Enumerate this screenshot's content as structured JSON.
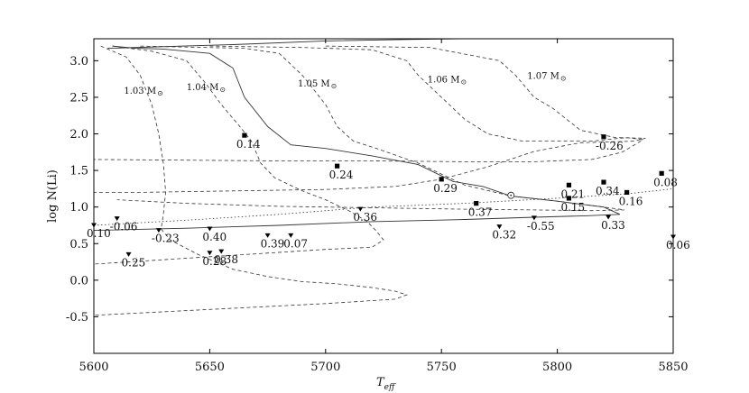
{
  "chart_data": {
    "type": "scatter",
    "xlabel": "T",
    "xlabel_sub": "eff",
    "ylabel": "log N(Li)",
    "xlim": [
      5600,
      5850
    ],
    "ylim": [
      -1.0,
      3.3
    ],
    "xticks": [
      "5600",
      "5650",
      "5700",
      "5750",
      "5800",
      "5850"
    ],
    "yticks": [
      "-0.5",
      "0.0",
      "0.5",
      "1.0",
      "1.5",
      "2.0",
      "2.5",
      "3.0"
    ],
    "tracks": [
      {
        "label": "1.03 M",
        "style": "dashed",
        "points": [
          [
            5603,
            3.2
          ],
          [
            5614,
            3.05
          ],
          [
            5620,
            2.8
          ],
          [
            5625,
            2.4
          ],
          [
            5628,
            2.0
          ],
          [
            5630,
            1.6
          ],
          [
            5631,
            1.2
          ],
          [
            5630,
            0.9
          ],
          [
            5629,
            0.7
          ],
          [
            5633,
            0.55
          ],
          [
            5645,
            0.35
          ],
          [
            5660,
            0.15
          ],
          [
            5675,
            0.05
          ],
          [
            5690,
            -0.02
          ],
          [
            5705,
            -0.05
          ],
          [
            5720,
            -0.1
          ],
          [
            5730,
            -0.15
          ],
          [
            5735,
            -0.2
          ],
          [
            5730,
            -0.26
          ],
          [
            5700,
            -0.32
          ],
          [
            5650,
            -0.4
          ],
          [
            5600,
            -0.48
          ]
        ]
      },
      {
        "label": "1.04 M",
        "style": "dashed",
        "points": [
          [
            5608,
            3.2
          ],
          [
            5625,
            3.13
          ],
          [
            5640,
            3.0
          ],
          [
            5648,
            2.7
          ],
          [
            5655,
            2.4
          ],
          [
            5663,
            2.1
          ],
          [
            5668,
            1.9
          ],
          [
            5672,
            1.6
          ],
          [
            5678,
            1.4
          ],
          [
            5690,
            1.22
          ],
          [
            5700,
            1.1
          ],
          [
            5710,
            0.95
          ],
          [
            5718,
            0.8
          ],
          [
            5722,
            0.67
          ],
          [
            5725,
            0.55
          ],
          [
            5720,
            0.45
          ],
          [
            5700,
            0.42
          ],
          [
            5670,
            0.36
          ],
          [
            5640,
            0.3
          ],
          [
            5600,
            0.22
          ]
        ]
      },
      {
        "label": "1.04 M",
        "style": "solid",
        "points": [
          [
            5608,
            3.2
          ],
          [
            5618,
            3.17
          ],
          [
            5630,
            3.16
          ],
          [
            5650,
            3.1
          ],
          [
            5660,
            2.9
          ],
          [
            5665,
            2.5
          ],
          [
            5675,
            2.1
          ],
          [
            5685,
            1.85
          ],
          [
            5700,
            1.8
          ],
          [
            5720,
            1.7
          ],
          [
            5740,
            1.58
          ],
          [
            5755,
            1.35
          ],
          [
            5768,
            1.28
          ],
          [
            5780,
            1.15
          ],
          [
            5800,
            1.08
          ],
          [
            5820,
            1.0
          ],
          [
            5827,
            0.9
          ],
          [
            5812,
            0.88
          ],
          [
            5790,
            0.86
          ],
          [
            5760,
            0.83
          ],
          [
            5720,
            0.8
          ],
          [
            5680,
            0.75
          ],
          [
            5640,
            0.71
          ],
          [
            5600,
            0.68
          ]
        ]
      },
      {
        "label": "1.05 M",
        "style": "dashed",
        "points": [
          [
            5620,
            3.2
          ],
          [
            5665,
            3.17
          ],
          [
            5680,
            3.1
          ],
          [
            5690,
            2.8
          ],
          [
            5700,
            2.4
          ],
          [
            5705,
            2.1
          ],
          [
            5712,
            1.9
          ],
          [
            5722,
            1.8
          ],
          [
            5740,
            1.6
          ],
          [
            5760,
            1.3
          ],
          [
            5780,
            1.15
          ],
          [
            5800,
            1.08
          ],
          [
            5820,
            1.0
          ],
          [
            5829,
            0.96
          ],
          [
            5815,
            0.95
          ],
          [
            5790,
            0.96
          ],
          [
            5760,
            0.97
          ],
          [
            5720,
            0.99
          ],
          [
            5680,
            1.01
          ],
          [
            5640,
            1.05
          ],
          [
            5610,
            1.1
          ]
        ]
      },
      {
        "label": "1.06 M",
        "style": "dashed",
        "points": [
          [
            5650,
            3.2
          ],
          [
            5690,
            3.18
          ],
          [
            5720,
            3.15
          ],
          [
            5735,
            3.0
          ],
          [
            5740,
            2.8
          ],
          [
            5750,
            2.5
          ],
          [
            5760,
            2.2
          ],
          [
            5770,
            2.0
          ],
          [
            5785,
            1.9
          ],
          [
            5800,
            1.9
          ],
          [
            5815,
            1.9
          ],
          [
            5830,
            1.95
          ],
          [
            5837,
            1.92
          ],
          [
            5828,
            1.75
          ],
          [
            5815,
            1.65
          ],
          [
            5790,
            1.62
          ],
          [
            5760,
            1.62
          ],
          [
            5720,
            1.63
          ],
          [
            5680,
            1.63
          ],
          [
            5640,
            1.64
          ],
          [
            5600,
            1.65
          ]
        ]
      },
      {
        "label": "1.07 M",
        "style": "dashed",
        "points": [
          [
            5700,
            3.2
          ],
          [
            5745,
            3.18
          ],
          [
            5775,
            3.0
          ],
          [
            5782,
            2.8
          ],
          [
            5790,
            2.5
          ],
          [
            5798,
            2.35
          ],
          [
            5810,
            2.05
          ],
          [
            5825,
            1.95
          ],
          [
            5838,
            1.94
          ],
          [
            5833,
            1.9
          ],
          [
            5810,
            1.88
          ],
          [
            5790,
            1.76
          ],
          [
            5770,
            1.55
          ],
          [
            5750,
            1.38
          ],
          [
            5730,
            1.28
          ],
          [
            5700,
            1.24
          ],
          [
            5660,
            1.22
          ],
          [
            5620,
            1.2
          ],
          [
            5600,
            1.2
          ]
        ]
      },
      {
        "label": "",
        "style": "dotted",
        "points": [
          [
            5600,
            0.75
          ],
          [
            5640,
            0.82
          ],
          [
            5680,
            0.9
          ],
          [
            5720,
            1.0
          ],
          [
            5760,
            1.05
          ],
          [
            5800,
            1.12
          ],
          [
            5830,
            1.18
          ],
          [
            5850,
            1.25
          ]
        ]
      },
      {
        "label": "",
        "style": "solid",
        "points": [
          [
            5606,
            3.17
          ],
          [
            5660,
            3.22
          ],
          [
            5700,
            3.27
          ],
          [
            5735,
            3.29
          ],
          [
            5760,
            3.3
          ]
        ]
      }
    ],
    "sun": {
      "x": 5780,
      "y": 1.16
    },
    "squares": [
      {
        "x": 5665,
        "y": 1.98,
        "label": "0.14"
      },
      {
        "x": 5705,
        "y": 1.56,
        "label": "0.24"
      },
      {
        "x": 5750,
        "y": 1.38,
        "label": "0.29"
      },
      {
        "x": 5765,
        "y": 1.05,
        "label": "0.37"
      },
      {
        "x": 5805,
        "y": 1.3,
        "label": "0.21"
      },
      {
        "x": 5805,
        "y": 1.12,
        "label": "0.15"
      },
      {
        "x": 5820,
        "y": 1.96,
        "label": "-0.26"
      },
      {
        "x": 5820,
        "y": 1.34,
        "label": "0.34"
      },
      {
        "x": 5830,
        "y": 1.2,
        "label": "0.16"
      },
      {
        "x": 5845,
        "y": 1.46,
        "label": "0.08"
      }
    ],
    "triangles": [
      {
        "x": 5600,
        "y": 0.75,
        "label": "0.10"
      },
      {
        "x": 5610,
        "y": 0.84,
        "label": "-0.06"
      },
      {
        "x": 5628,
        "y": 0.68,
        "label": "-0.23"
      },
      {
        "x": 5615,
        "y": 0.35,
        "label": "0.25"
      },
      {
        "x": 5650,
        "y": 0.7,
        "label": "0.40"
      },
      {
        "x": 5650,
        "y": 0.37,
        "label": "0.28"
      },
      {
        "x": 5655,
        "y": 0.39,
        "label": "0.38"
      },
      {
        "x": 5675,
        "y": 0.61,
        "label": "0.39"
      },
      {
        "x": 5685,
        "y": 0.61,
        "label": "0.07"
      },
      {
        "x": 5715,
        "y": 0.97,
        "label": "0.36"
      },
      {
        "x": 5775,
        "y": 0.73,
        "label": "0.32"
      },
      {
        "x": 5790,
        "y": 0.85,
        "label": "-0.55"
      },
      {
        "x": 5822,
        "y": 0.86,
        "label": "0.33"
      },
      {
        "x": 5850,
        "y": 0.59,
        "label": "0.06"
      }
    ]
  }
}
